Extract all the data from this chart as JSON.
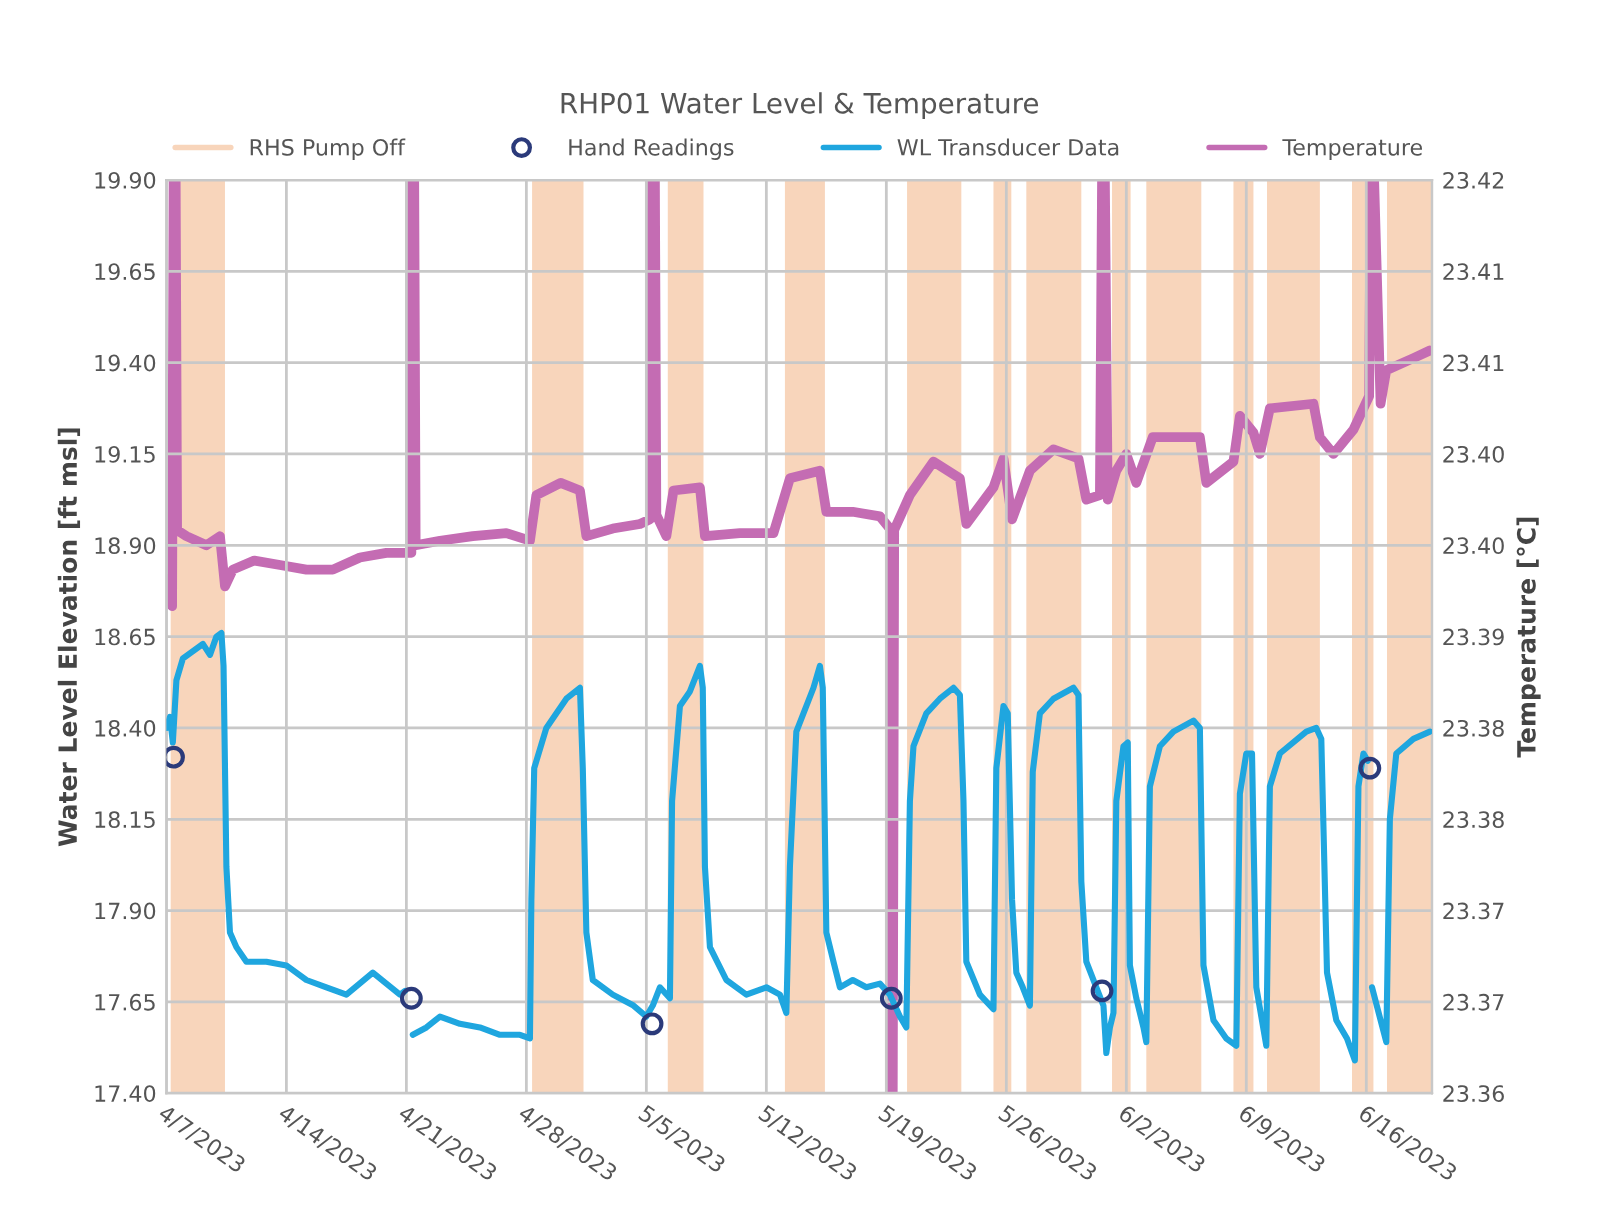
{
  "chart_data": {
    "type": "line",
    "title": "RHP01 Water Level & Temperature",
    "ylabel": "Water Level Elevation [ft msl]",
    "y2label": "Temperature [°C]",
    "xlim": [
      "2023-04-07T00:00",
      "2023-06-19T20:00"
    ],
    "xticks": [
      {
        "value": "2023-04-07",
        "label": "4/7/2023"
      },
      {
        "value": "2023-04-14",
        "label": "4/14/2023"
      },
      {
        "value": "2023-04-21",
        "label": "4/21/2023"
      },
      {
        "value": "2023-04-28",
        "label": "4/28/2023"
      },
      {
        "value": "2023-05-05",
        "label": "5/5/2023"
      },
      {
        "value": "2023-05-12",
        "label": "5/12/2023"
      },
      {
        "value": "2023-05-19",
        "label": "5/19/2023"
      },
      {
        "value": "2023-05-26",
        "label": "5/26/2023"
      },
      {
        "value": "2023-06-02",
        "label": "6/2/2023"
      },
      {
        "value": "2023-06-09",
        "label": "6/9/2023"
      },
      {
        "value": "2023-06-16",
        "label": "6/16/2023"
      }
    ],
    "ylim": [
      17.4,
      19.9
    ],
    "yticks": [
      {
        "value": 17.4,
        "label": "17.40"
      },
      {
        "value": 17.65,
        "label": "17.65"
      },
      {
        "value": 17.9,
        "label": "17.90"
      },
      {
        "value": 18.15,
        "label": "18.15"
      },
      {
        "value": 18.4,
        "label": "18.40"
      },
      {
        "value": 18.65,
        "label": "18.65"
      },
      {
        "value": 18.9,
        "label": "18.90"
      },
      {
        "value": 19.15,
        "label": "19.15"
      },
      {
        "value": 19.4,
        "label": "19.40"
      },
      {
        "value": 19.65,
        "label": "19.65"
      },
      {
        "value": 19.9,
        "label": "19.90"
      }
    ],
    "y2lim": [
      23.36,
      23.42
    ],
    "y2ticks": [
      {
        "value": 23.36,
        "label": "23.36"
      },
      {
        "value": 23.366,
        "label": "23.37"
      },
      {
        "value": 23.372,
        "label": "23.37"
      },
      {
        "value": 23.378,
        "label": "23.38"
      },
      {
        "value": 23.384,
        "label": "23.38"
      },
      {
        "value": 23.39,
        "label": "23.39"
      },
      {
        "value": 23.396,
        "label": "23.40"
      },
      {
        "value": 23.402,
        "label": "23.40"
      },
      {
        "value": 23.408,
        "label": "23.41"
      },
      {
        "value": 23.414,
        "label": "23.41"
      },
      {
        "value": 23.42,
        "label": "23.42"
      }
    ],
    "grid": true,
    "legend": "top",
    "bands": [
      {
        "axis": "x",
        "from": "2023-04-07T06:00",
        "to": "2023-04-10T10:00",
        "label": "RHS Pump Off",
        "color": "#f8d5bb"
      },
      {
        "axis": "x",
        "from": "2023-04-28T08:00",
        "to": "2023-05-01T08:00",
        "color": "#f8d5bb"
      },
      {
        "axis": "x",
        "from": "2023-05-06T06:00",
        "to": "2023-05-08T08:00",
        "color": "#f8d5bb"
      },
      {
        "axis": "x",
        "from": "2023-05-13T02:00",
        "to": "2023-05-15T10:00",
        "color": "#f8d5bb"
      },
      {
        "axis": "x",
        "from": "2023-05-20T05:00",
        "to": "2023-05-23T09:00",
        "color": "#f8d5bb"
      },
      {
        "axis": "x",
        "from": "2023-05-25T06:00",
        "to": "2023-05-26T07:00",
        "color": "#f8d5bb"
      },
      {
        "axis": "x",
        "from": "2023-05-27T04:00",
        "to": "2023-05-30T09:00",
        "color": "#f8d5bb"
      },
      {
        "axis": "x",
        "from": "2023-06-01T04:00",
        "to": "2023-06-02T06:00",
        "color": "#f8d5bb"
      },
      {
        "axis": "x",
        "from": "2023-06-03T04:00",
        "to": "2023-06-06T09:00",
        "color": "#f8d5bb"
      },
      {
        "axis": "x",
        "from": "2023-06-08T06:00",
        "to": "2023-06-09T10:00",
        "color": "#f8d5bb"
      },
      {
        "axis": "x",
        "from": "2023-06-10T05:00",
        "to": "2023-06-13T07:00",
        "color": "#f8d5bb"
      },
      {
        "axis": "x",
        "from": "2023-06-15T04:00",
        "to": "2023-06-16T10:00",
        "color": "#f8d5bb"
      },
      {
        "axis": "x",
        "from": "2023-06-17T05:00",
        "to": "2023-06-19T20:00",
        "color": "#f8d5bb"
      }
    ],
    "series": [
      {
        "name": "Hand Readings",
        "type": "scatter",
        "marker": "circle",
        "color": "#2b3a7a",
        "x": [
          "2023-04-07T10:00",
          "2023-04-21T07:00",
          "2023-05-05T08:00",
          "2023-05-19T07:00",
          "2023-05-31T14:00",
          "2023-06-16T05:00"
        ],
        "values": [
          18.32,
          17.66,
          17.59,
          17.66,
          17.68,
          18.29
        ]
      },
      {
        "name": "WL Transducer Data",
        "color": "#1fa6df",
        "x": [
          "2023-04-07T00:00",
          "2023-04-07T05:00",
          "2023-04-07T09:00",
          "2023-04-07T14:00",
          "2023-04-07T23:00",
          "2023-04-08T13:00",
          "2023-04-09T03:00",
          "2023-04-09T13:00",
          "2023-04-09T22:00",
          "2023-04-10T05:00",
          "2023-04-10T08:00",
          "2023-04-10T12:00",
          "2023-04-10T17:00",
          "2023-04-11T02:00",
          "2023-04-11T16:00",
          "2023-04-12T20:00",
          "2023-04-14T00:00",
          "2023-04-15T04:00",
          "2023-04-16T08:00",
          "2023-04-17T12:00",
          "2023-04-19T01:00",
          "2023-04-19T20:00",
          "2023-04-20T15:00",
          "2023-04-20T22:00",
          "2023-04-21T03:00",
          "2023-04-21T09:00",
          "2023-04-22T04:00",
          "2023-04-22T23:00",
          "2023-04-24T03:00",
          "2023-04-25T07:00",
          "2023-04-26T11:00",
          "2023-04-27T15:00",
          "2023-04-28T05:00",
          "2023-04-28T07:00",
          "2023-04-28T11:00",
          "2023-04-29T04:00",
          "2023-04-30T08:00",
          "2023-05-01T03:00",
          "2023-05-01T07:00",
          "2023-05-01T12:00",
          "2023-05-01T21:00",
          "2023-05-03T01:00",
          "2023-05-04T06:00",
          "2023-05-05T00:00",
          "2023-05-05T09:00",
          "2023-05-05T19:00",
          "2023-05-06T09:00",
          "2023-05-06T12:00",
          "2023-05-06T23:00",
          "2023-05-07T13:00",
          "2023-05-08T03:00",
          "2023-05-08T07:00",
          "2023-05-08T10:00",
          "2023-05-08T17:00",
          "2023-05-09T16:00",
          "2023-05-10T20:00",
          "2023-05-12T00:00",
          "2023-05-12T19:00",
          "2023-05-13T04:00",
          "2023-05-13T09:00",
          "2023-05-13T18:00",
          "2023-05-14T18:00",
          "2023-05-15T03:00",
          "2023-05-15T07:00",
          "2023-05-15T12:00",
          "2023-05-15T22:00",
          "2023-05-16T07:00",
          "2023-05-17T01:00",
          "2023-05-17T20:00",
          "2023-05-18T15:00",
          "2023-05-19T05:00",
          "2023-05-19T19:00",
          "2023-05-20T04:00",
          "2023-05-20T09:00",
          "2023-05-20T14:00",
          "2023-05-21T08:00",
          "2023-05-22T03:00",
          "2023-05-22T22:00",
          "2023-05-23T07:00",
          "2023-05-23T12:00",
          "2023-05-23T16:00",
          "2023-05-24T11:00",
          "2023-05-25T06:00",
          "2023-05-25T10:00",
          "2023-05-25T20:00",
          "2023-05-26T02:00",
          "2023-05-26T08:00",
          "2023-05-26T14:00",
          "2023-05-26T23:00",
          "2023-05-27T09:00",
          "2023-05-27T13:00",
          "2023-05-27T23:00",
          "2023-05-28T18:00",
          "2023-05-29T22:00",
          "2023-05-30T05:00",
          "2023-05-30T09:00",
          "2023-05-30T16:00",
          "2023-05-31T06:00",
          "2023-05-31T16:00",
          "2023-05-31T20:00",
          "2023-06-01T01:00",
          "2023-06-01T06:00",
          "2023-06-01T10:00",
          "2023-06-01T20:00",
          "2023-06-02T02:00",
          "2023-06-02T05:00",
          "2023-06-02T14:00",
          "2023-06-03T00:00",
          "2023-06-03T04:00",
          "2023-06-03T09:00",
          "2023-06-03T23:00",
          "2023-06-04T18:00",
          "2023-06-05T22:00",
          "2023-06-06T07:00",
          "2023-06-06T12:00",
          "2023-06-07T02:00",
          "2023-06-07T20:00",
          "2023-06-08T10:00",
          "2023-06-08T15:00",
          "2023-06-09T00:00",
          "2023-06-09T08:00",
          "2023-06-09T14:00",
          "2023-06-10T04:00",
          "2023-06-10T09:00",
          "2023-06-10T23:00",
          "2023-06-12T12:00",
          "2023-06-13T02:00",
          "2023-06-13T09:00",
          "2023-06-13T17:00",
          "2023-06-14T06:00",
          "2023-06-14T21:00",
          "2023-06-15T08:00",
          "2023-06-15T13:00",
          "2023-06-15T20:00",
          "2023-06-16T02:00",
          "2023-06-16T05:00",
          "2023-06-16T08:00",
          "2023-06-17T04:00",
          "2023-06-17T09:00",
          "2023-06-17T18:00",
          "2023-06-18T18:00",
          "2023-06-19T17:00"
        ],
        "values": [
          18.4,
          18.43,
          18.36,
          18.53,
          18.59,
          18.61,
          18.63,
          18.6,
          18.65,
          18.66,
          18.57,
          18.02,
          17.84,
          17.8,
          17.76,
          17.76,
          17.75,
          17.71,
          17.69,
          17.67,
          17.73,
          17.7,
          17.67,
          17.68,
          null,
          17.56,
          17.58,
          17.61,
          17.59,
          17.58,
          17.56,
          17.56,
          17.55,
          17.93,
          18.29,
          18.4,
          18.48,
          18.51,
          18.29,
          17.84,
          17.71,
          17.67,
          17.64,
          17.61,
          17.64,
          17.69,
          17.66,
          18.2,
          18.46,
          18.5,
          18.57,
          18.51,
          18.02,
          17.8,
          17.71,
          17.67,
          17.69,
          17.67,
          17.62,
          18.02,
          18.39,
          18.51,
          18.57,
          18.51,
          17.84,
          17.76,
          17.69,
          17.71,
          17.69,
          17.7,
          17.67,
          17.61,
          17.58,
          18.2,
          18.35,
          18.44,
          18.48,
          18.51,
          18.49,
          18.2,
          17.76,
          17.67,
          17.63,
          18.29,
          18.46,
          18.44,
          17.93,
          17.73,
          17.69,
          17.64,
          18.28,
          18.44,
          18.48,
          18.51,
          18.49,
          17.98,
          17.76,
          17.69,
          17.64,
          17.51,
          17.58,
          17.62,
          18.2,
          18.35,
          18.36,
          17.75,
          17.66,
          17.58,
          17.54,
          18.24,
          18.35,
          18.39,
          18.42,
          18.4,
          17.75,
          17.6,
          17.55,
          17.53,
          18.22,
          18.33,
          18.33,
          17.69,
          17.53,
          18.24,
          18.33,
          18.39,
          18.4,
          18.37,
          17.73,
          17.6,
          17.55,
          17.49,
          18.24,
          18.33,
          18.31,
          null,
          17.69,
          17.54,
          18.15,
          18.33,
          18.37,
          18.39
        ]
      },
      {
        "name": "Temperature",
        "axis": "y2",
        "color": "#c46cb3",
        "x": [
          "2023-04-07T00:00",
          "2023-04-07T07:00",
          "2023-04-07T08:00",
          "2023-04-07T10:00",
          "2023-04-07T13:00",
          "2023-04-07T15:00",
          "2023-04-08T04:00",
          "2023-04-09T08:00",
          "2023-04-10T03:00",
          "2023-04-10T10:00",
          "2023-04-10T21:00",
          "2023-04-12T03:00",
          "2023-04-13T15:00",
          "2023-04-15T04:00",
          "2023-04-16T17:00",
          "2023-04-18T07:00",
          "2023-04-19T20:00",
          "2023-04-21T05:00",
          "2023-04-21T07:00",
          "2023-04-21T08:00",
          "2023-04-21T11:00",
          "2023-04-21T13:00",
          "2023-04-22T23:00",
          "2023-04-24T21:00",
          "2023-04-26T20:00",
          "2023-04-28T05:00",
          "2023-04-28T14:00",
          "2023-04-30T00:00",
          "2023-05-01T03:00",
          "2023-05-01T12:00",
          "2023-05-03T01:00",
          "2023-05-04T15:00",
          "2023-05-05T05:00",
          "2023-05-05T08:00",
          "2023-05-05T12:00",
          "2023-05-05T14:00",
          "2023-05-06T04:00",
          "2023-05-06T14:00",
          "2023-05-08T03:00",
          "2023-05-08T10:00",
          "2023-05-10T11:00",
          "2023-05-12T10:00",
          "2023-05-13T09:00",
          "2023-05-15T03:00",
          "2023-05-15T12:00",
          "2023-05-17T01:00",
          "2023-05-18T15:00",
          "2023-05-19T05:00",
          "2023-05-19T06:00",
          "2023-05-19T09:00",
          "2023-05-19T11:00",
          "2023-05-20T09:00",
          "2023-05-21T18:00",
          "2023-05-23T07:00",
          "2023-05-23T16:00",
          "2023-05-25T06:00",
          "2023-05-25T20:00",
          "2023-05-26T08:00",
          "2023-05-27T09:00",
          "2023-05-28T18:00",
          "2023-05-30T05:00",
          "2023-05-30T16:00",
          "2023-05-31T11:00",
          "2023-05-31T14:00",
          "2023-05-31T18:00",
          "2023-05-31T22:00",
          "2023-06-01T10:00",
          "2023-06-02T00:00",
          "2023-06-02T14:00",
          "2023-06-03T13:00",
          "2023-06-06T07:00",
          "2023-06-06T16:00",
          "2023-06-08T06:00",
          "2023-06-08T15:00",
          "2023-06-09T10:00",
          "2023-06-09T19:00",
          "2023-06-10T09:00",
          "2023-06-12T22:00",
          "2023-06-13T07:00",
          "2023-06-14T02:00",
          "2023-06-15T06:00",
          "2023-06-16T04:00",
          "2023-06-16T06:00",
          "2023-06-16T11:00",
          "2023-06-16T20:00",
          "2023-06-17T04:00",
          "2023-06-18T18:00",
          "2023-06-19T17:00"
        ],
        "values": [
          23.3938,
          23.3922,
          23.392,
          23.42,
          23.42,
          23.397,
          23.3966,
          23.396,
          23.3966,
          23.3933,
          23.3944,
          23.395,
          23.3947,
          23.3944,
          23.3944,
          23.3952,
          23.3955,
          23.3955,
          23.3955,
          23.42,
          23.42,
          23.396,
          23.3963,
          23.3966,
          23.3968,
          23.3963,
          23.3993,
          23.4001,
          23.3996,
          23.3966,
          23.3971,
          23.3974,
          23.3977,
          23.42,
          23.42,
          23.398,
          23.3966,
          23.3996,
          23.3998,
          23.3966,
          23.3968,
          23.3968,
          23.4004,
          23.4009,
          23.3982,
          23.3982,
          23.3979,
          23.3971,
          23.36,
          23.36,
          23.397,
          23.3993,
          23.4015,
          23.4004,
          23.3974,
          23.3998,
          23.4017,
          23.3977,
          23.4009,
          23.4023,
          23.4017,
          23.399,
          23.3993,
          23.42,
          23.42,
          23.399,
          23.4009,
          23.402,
          23.4001,
          23.4031,
          23.4031,
          23.4001,
          23.4015,
          23.4045,
          23.4034,
          23.402,
          23.405,
          23.4053,
          23.4031,
          23.402,
          23.4036,
          23.4058,
          23.42,
          23.42,
          23.4053,
          23.4075,
          23.4083,
          23.4088
        ]
      }
    ]
  }
}
